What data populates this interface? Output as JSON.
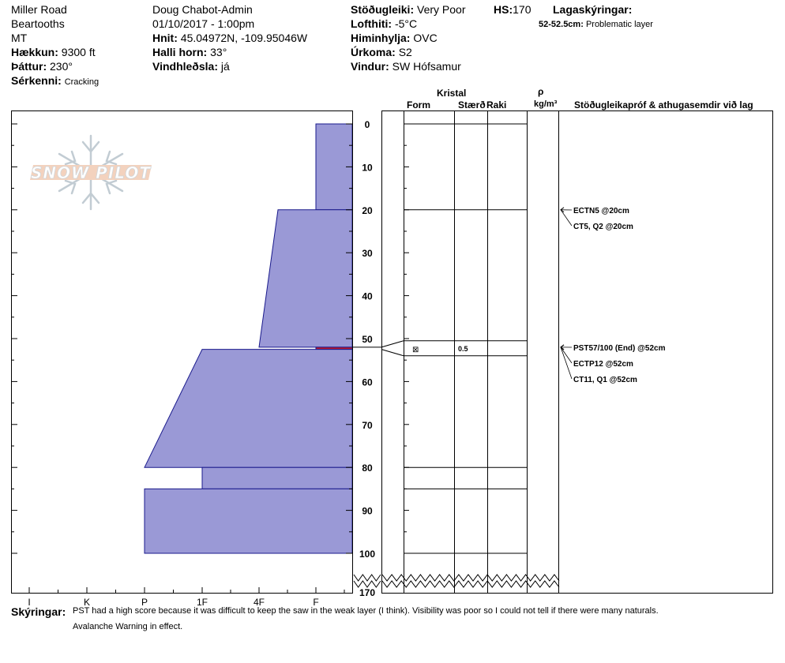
{
  "header": {
    "location": "Miller Road",
    "range": "Beartooths",
    "state": "MT",
    "elevation_label": "Hækkun:",
    "elevation": "9300 ft",
    "aspect_label": "Þáttur:",
    "aspect": "230°",
    "features_label": "Sérkenni:",
    "features": "Cracking",
    "observer": "Doug Chabot-Admin",
    "datetime": "01/10/2017 - 1:00pm",
    "coords_label": "Hnit:",
    "coords": "45.04972N, -109.95046W",
    "slope_label": "Halli horn:",
    "slope": "33°",
    "wind_loading_label": "Vindhleðsla:",
    "wind_loading": "já",
    "stability_label": "Stöðugleiki:",
    "stability": "Very Poor",
    "hs_label": "HS:",
    "hs": "170",
    "air_temp_label": "Lofthiti:",
    "air_temp": "-5°C",
    "sky_label": "Himinhylja:",
    "sky": "OVC",
    "precip_label": "Úrkoma:",
    "precip": "S2",
    "wind_label": "Vindur:",
    "wind": "SW Hófsamur",
    "layer_notes_label": "Lagaskýringar:",
    "layer_note_depth": "52-52.5cm:",
    "layer_note_text": "Problematic layer"
  },
  "logo_text": "SNOW PILOT",
  "columns": {
    "crystal": "Kristal",
    "form": "Form",
    "size": "Stærð",
    "wetness": "Raki",
    "rho": "ρ",
    "density_unit": "kg/m³",
    "tests_header": "Stöðugleikapróf & athugasemdir við lag"
  },
  "grain": {
    "symbol": "⊠",
    "size": "0.5"
  },
  "tests": [
    "ECTN5 @20cm",
    "CT5, Q2 @20cm",
    "PST57/100 (End) @52cm",
    "ECTP12 @52cm",
    "CT11, Q1 @52cm"
  ],
  "footer": {
    "label": "Skýringar:",
    "line1": "PST had a high score because it was difficult to keep the saw in the weak layer (I think). Visibility was poor so I could not tell if there were many naturals.",
    "line2": "Avalanche Warning in effect."
  },
  "colors": {
    "hardness_fill": "#9a99d6",
    "hardness_edge": "#1a1a8c",
    "weak_layer": "#c0182b"
  },
  "chart_data": {
    "type": "area",
    "hardness_scale": [
      "I",
      "K",
      "P",
      "1F",
      "4F",
      "F"
    ],
    "depth_ticks": [
      "0",
      "10",
      "20",
      "30",
      "40",
      "50",
      "60",
      "70",
      "80",
      "90",
      "100",
      "170"
    ],
    "layers": [
      {
        "top": 0,
        "bottom": 20,
        "hardness_top": "F",
        "hardness_bottom": "F"
      },
      {
        "top": 20,
        "bottom": 52,
        "hardness_top": "4F+",
        "hardness_bottom": "4F"
      },
      {
        "top": 52,
        "bottom": 52.5,
        "hardness_top": "F",
        "hardness_bottom": "F",
        "problematic": true
      },
      {
        "top": 52.5,
        "bottom": 80,
        "hardness_top": "1F-",
        "hardness_bottom": "P"
      },
      {
        "top": 80,
        "bottom": 85,
        "hardness_top": "1F",
        "hardness_bottom": "1F"
      },
      {
        "top": 85,
        "bottom": 100,
        "hardness_top": "P",
        "hardness_bottom": "P"
      }
    ],
    "layer_boundaries": [
      0,
      20,
      50.5,
      54,
      80,
      85,
      100
    ]
  }
}
